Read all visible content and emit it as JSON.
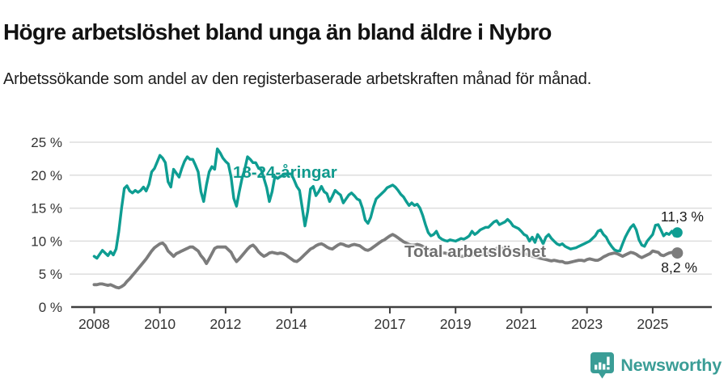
{
  "header": {
    "title": "Högre arbetslöshet bland unga än bland äldre i Nybro",
    "subtitle": "Arbetssökande som andel av den registerbaserade arbetskraften månad för månad."
  },
  "footer": {
    "brand": "Newsworthy",
    "logo_icon": "bar-chart-speech-bubble-icon"
  },
  "colors": {
    "young": "#0e9d92",
    "total": "#7c7c7c",
    "young_label": "#0f9a8d",
    "total_label": "#6f6f6f",
    "axis": "#3f3f3f",
    "grid": "#dedede",
    "tick_text": "#333333",
    "brand_teal": "#3a9d96"
  },
  "chart_data": {
    "type": "line",
    "title": "Högre arbetslöshet bland unga än bland äldre i Nybro",
    "xlabel": "",
    "ylabel": "",
    "grid": "horizontal",
    "legend_position": "inline-labels",
    "xlim": [
      2007.3,
      2026.8
    ],
    "ylim": [
      0,
      25
    ],
    "x_start": 2008.0,
    "points_per_year": 12,
    "x_unit": "month",
    "xticks": [
      {
        "value": 2008,
        "label": "2008"
      },
      {
        "value": 2010,
        "label": "2010"
      },
      {
        "value": 2012,
        "label": "2012"
      },
      {
        "value": 2014,
        "label": "2014"
      },
      {
        "value": 2017,
        "label": "2017"
      },
      {
        "value": 2019,
        "label": "2019"
      },
      {
        "value": 2021,
        "label": "2021"
      },
      {
        "value": 2023,
        "label": "2023"
      },
      {
        "value": 2025,
        "label": "2025"
      }
    ],
    "yticks": [
      {
        "value": 0,
        "label": "0 %"
      },
      {
        "value": 5,
        "label": "5 %"
      },
      {
        "value": 10,
        "label": "10 %"
      },
      {
        "value": 15,
        "label": "15 %"
      },
      {
        "value": 20,
        "label": "20 %"
      },
      {
        "value": 25,
        "label": "25 %"
      }
    ],
    "series": [
      {
        "name": "18-24-åringar",
        "color_key": "young",
        "end_label": "11,3 %",
        "end_value": 11.3,
        "values": [
          7.7,
          7.4,
          8.0,
          8.6,
          8.2,
          7.8,
          8.4,
          7.9,
          8.8,
          11.5,
          15.0,
          18.0,
          18.4,
          17.6,
          17.3,
          17.7,
          17.4,
          17.7,
          18.2,
          17.6,
          18.6,
          20.5,
          21.0,
          22.0,
          23.0,
          22.6,
          21.9,
          19.0,
          18.2,
          20.9,
          20.3,
          19.7,
          21.0,
          22.1,
          22.8,
          22.4,
          22.4,
          21.5,
          20.5,
          17.5,
          16.0,
          18.5,
          20.5,
          21.3,
          20.9,
          24.0,
          23.4,
          22.6,
          22.1,
          21.7,
          19.7,
          16.5,
          15.3,
          17.5,
          19.5,
          20.9,
          22.8,
          22.4,
          21.9,
          21.9,
          21.1,
          20.8,
          19.5,
          18.1,
          16.0,
          17.5,
          19.8,
          19.5,
          19.8,
          20.0,
          20.2,
          20.2,
          20.2,
          19.3,
          18.3,
          17.7,
          15.0,
          12.3,
          14.5,
          17.9,
          18.3,
          16.9,
          17.5,
          18.3,
          17.5,
          17.2,
          16.0,
          16.8,
          17.7,
          17.3,
          17.0,
          15.8,
          16.4,
          17.0,
          17.3,
          16.9,
          16.4,
          16.2,
          15.0,
          13.2,
          12.7,
          13.6,
          15.2,
          16.4,
          16.8,
          17.2,
          17.6,
          18.1,
          18.3,
          18.5,
          18.2,
          17.7,
          17.1,
          16.7,
          16.0,
          15.4,
          15.8,
          15.4,
          15.6,
          15.0,
          13.9,
          12.5,
          11.3,
          10.8,
          11.0,
          11.5,
          10.6,
          10.3,
          10.1,
          10.0,
          10.2,
          10.1,
          10.0,
          10.2,
          10.4,
          10.3,
          10.5,
          10.8,
          11.5,
          11.0,
          11.3,
          11.7,
          11.9,
          12.1,
          12.1,
          12.5,
          12.9,
          13.1,
          12.5,
          12.7,
          12.9,
          13.3,
          12.9,
          12.3,
          12.1,
          11.9,
          11.5,
          11.0,
          10.8,
          10.0,
          10.6,
          9.8,
          11.0,
          10.4,
          9.6,
          10.6,
          11.0,
          10.4,
          10.0,
          9.6,
          9.4,
          9.6,
          9.2,
          9.0,
          8.8,
          8.9,
          9.0,
          9.2,
          9.4,
          9.6,
          9.8,
          10.0,
          10.4,
          10.8,
          11.5,
          11.7,
          11.0,
          10.6,
          9.8,
          9.2,
          8.7,
          8.5,
          8.5,
          9.6,
          10.6,
          11.4,
          12.1,
          12.5,
          11.7,
          10.2,
          9.4,
          9.2,
          10.0,
          10.5,
          11.0,
          12.4,
          12.5,
          11.7,
          10.8,
          11.2,
          11.0,
          11.5,
          10.8,
          11.3
        ]
      },
      {
        "name": "Total arbetslöshet",
        "color_key": "total",
        "end_label": "8,2 %",
        "end_value": 8.2,
        "values": [
          3.4,
          3.4,
          3.5,
          3.5,
          3.4,
          3.3,
          3.4,
          3.2,
          3.0,
          2.9,
          3.1,
          3.4,
          3.9,
          4.3,
          4.8,
          5.3,
          5.8,
          6.3,
          6.8,
          7.3,
          7.9,
          8.5,
          9.0,
          9.3,
          9.6,
          9.7,
          9.3,
          8.5,
          8.1,
          7.7,
          8.1,
          8.3,
          8.5,
          8.7,
          8.9,
          9.1,
          9.1,
          8.8,
          8.5,
          7.8,
          7.3,
          6.6,
          7.3,
          8.1,
          8.9,
          9.1,
          9.1,
          9.1,
          9.1,
          8.7,
          8.3,
          7.5,
          6.9,
          7.3,
          7.8,
          8.3,
          8.8,
          9.2,
          9.4,
          9.0,
          8.4,
          8.0,
          7.7,
          7.9,
          8.2,
          8.3,
          8.2,
          8.1,
          8.2,
          8.1,
          7.9,
          7.6,
          7.3,
          7.0,
          6.9,
          7.2,
          7.6,
          8.0,
          8.4,
          8.8,
          9.0,
          9.3,
          9.5,
          9.6,
          9.4,
          9.1,
          8.9,
          8.8,
          9.1,
          9.4,
          9.6,
          9.5,
          9.3,
          9.2,
          9.4,
          9.5,
          9.4,
          9.3,
          9.0,
          8.7,
          8.6,
          8.8,
          9.1,
          9.4,
          9.7,
          10.0,
          10.2,
          10.5,
          10.8,
          11.0,
          10.8,
          10.5,
          10.2,
          9.9,
          9.7,
          9.5,
          9.4,
          9.4,
          9.5,
          9.4,
          9.2,
          9.0,
          8.8,
          8.6,
          8.5,
          8.4,
          8.3,
          8.2,
          8.2,
          8.1,
          8.0,
          7.9,
          7.9,
          7.8,
          7.7,
          7.7,
          7.8,
          7.8,
          7.9,
          7.9,
          7.8,
          7.9,
          8.0,
          8.1,
          8.2,
          8.3,
          8.6,
          8.9,
          9.0,
          8.9,
          8.8,
          8.7,
          8.6,
          8.5,
          8.4,
          8.3,
          8.2,
          8.1,
          8.0,
          7.9,
          7.7,
          7.6,
          7.5,
          7.4,
          7.3,
          7.2,
          7.1,
          7.0,
          7.1,
          7.0,
          6.9,
          6.9,
          6.7,
          6.7,
          6.8,
          6.9,
          7.0,
          7.1,
          7.1,
          7.0,
          7.2,
          7.3,
          7.2,
          7.1,
          7.1,
          7.3,
          7.6,
          7.8,
          8.0,
          8.1,
          8.2,
          8.1,
          7.9,
          7.7,
          7.9,
          8.1,
          8.3,
          8.2,
          8.0,
          7.7,
          7.5,
          7.7,
          7.9,
          8.1,
          8.5,
          8.4,
          8.3,
          7.9,
          7.8,
          8.0,
          8.2,
          8.3,
          8.1,
          8.2
        ]
      }
    ]
  }
}
